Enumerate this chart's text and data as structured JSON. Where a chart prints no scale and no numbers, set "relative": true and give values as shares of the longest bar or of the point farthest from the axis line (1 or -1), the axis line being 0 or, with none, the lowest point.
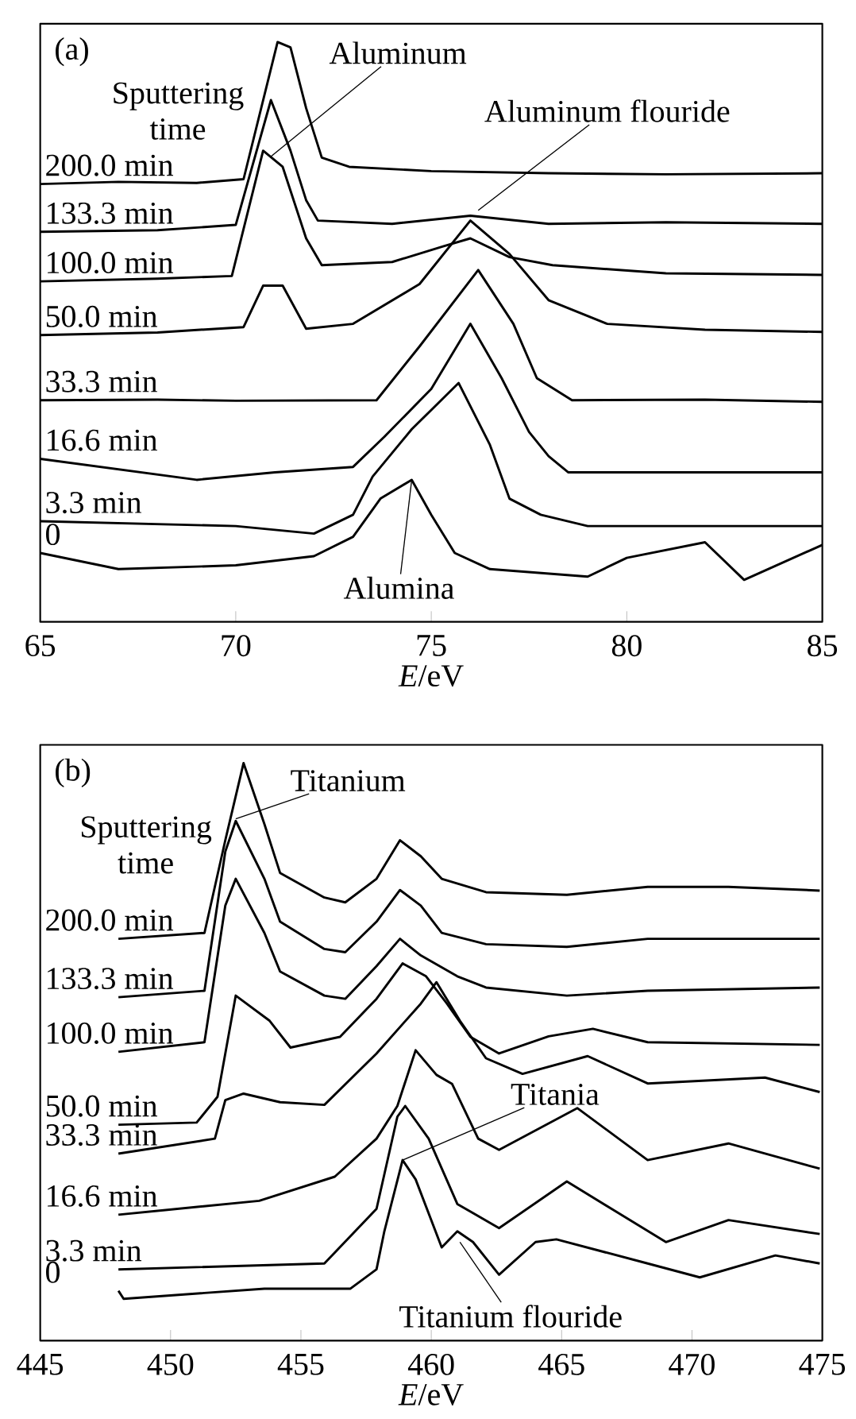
{
  "chart_data": [
    {
      "type": "line",
      "relative": true,
      "title": "(a)",
      "legend_title": "Sputtering time",
      "xlabel": "*E*/eV",
      "xlim": [
        65,
        85
      ],
      "xticks": [
        65,
        70,
        75,
        80,
        85
      ],
      "tick_labels": "x",
      "series": [
        {
          "name": "200.0 min",
          "color": "#000000",
          "x": [
            65,
            67,
            69,
            70.2,
            71.07,
            71.4,
            71.8,
            72.2,
            72.9,
            75,
            78,
            81,
            85
          ],
          "values": [
            0.736,
            0.74,
            0.738,
            0.745,
            1.0,
            0.99,
            0.877,
            0.785,
            0.768,
            0.76,
            0.756,
            0.754,
            0.756
          ]
        },
        {
          "name": "133.3 min",
          "color": "#000000",
          "x": [
            65,
            68,
            70.0,
            70.9,
            71.4,
            71.8,
            72.1,
            74,
            76,
            78,
            81,
            85
          ],
          "values": [
            0.647,
            0.65,
            0.66,
            0.892,
            0.798,
            0.706,
            0.668,
            0.662,
            0.677,
            0.662,
            0.665,
            0.662
          ]
        },
        {
          "name": "100.0 min",
          "color": "#000000",
          "x": [
            65,
            68,
            69.9,
            70.7,
            71.2,
            71.8,
            72.2,
            74,
            75.3,
            76,
            77,
            78.1,
            81,
            85
          ],
          "values": [
            0.555,
            0.56,
            0.565,
            0.798,
            0.768,
            0.635,
            0.585,
            0.591,
            0.62,
            0.635,
            0.6,
            0.585,
            0.57,
            0.567
          ]
        },
        {
          "name": "50.0 min",
          "color": "#000000",
          "x": [
            65,
            68,
            70.2,
            70.7,
            71.2,
            71.8,
            73,
            74.7,
            76.0,
            77,
            78,
            79.5,
            82,
            85
          ],
          "values": [
            0.455,
            0.46,
            0.47,
            0.547,
            0.547,
            0.467,
            0.476,
            0.55,
            0.668,
            0.606,
            0.52,
            0.476,
            0.465,
            0.461
          ]
        },
        {
          "name": "33.3 min",
          "color": "#000000",
          "x": [
            65,
            68,
            70,
            73.6,
            74.7,
            76.2,
            77.1,
            77.7,
            78.6,
            82,
            85
          ],
          "values": [
            0.334,
            0.335,
            0.333,
            0.334,
            0.434,
            0.576,
            0.476,
            0.375,
            0.334,
            0.335,
            0.331
          ]
        },
        {
          "name": "16.6 min",
          "color": "#000000",
          "x": [
            65,
            69,
            71,
            73,
            73.8,
            75,
            76,
            76.8,
            77.5,
            78,
            78.5,
            82,
            85
          ],
          "values": [
            0.225,
            0.186,
            0.2,
            0.21,
            0.266,
            0.355,
            0.476,
            0.375,
            0.275,
            0.23,
            0.2,
            0.2,
            0.2
          ]
        },
        {
          "name": "3.3 min",
          "color": "#000000",
          "x": [
            65,
            70,
            72,
            73,
            73.5,
            74.5,
            75.7,
            76.5,
            77,
            77.8,
            79,
            85
          ],
          "values": [
            0.109,
            0.1,
            0.086,
            0.121,
            0.192,
            0.28,
            0.366,
            0.251,
            0.151,
            0.121,
            0.1,
            0.1
          ]
        },
        {
          "name": "0",
          "color": "#000000",
          "x": [
            65,
            67,
            70,
            72,
            73,
            73.7,
            74.5,
            75,
            75.6,
            76.5,
            79,
            80,
            82,
            83,
            85
          ],
          "values": [
            0.05,
            0.02,
            0.027,
            0.044,
            0.08,
            0.151,
            0.186,
            0.121,
            0.05,
            0.02,
            0.006,
            0.041,
            0.07,
            0.0,
            0.065
          ]
        }
      ],
      "annotations": [
        {
          "text": "Aluminum",
          "x": 70.9,
          "y": 0.787
        },
        {
          "text": "Aluminum flouride",
          "x": 76.2,
          "y": 0.687
        },
        {
          "text": "Alumina",
          "x": 74.5,
          "y": 0.186
        }
      ]
    },
    {
      "type": "line",
      "relative": true,
      "title": "(b)",
      "legend_title": "Sputtering time",
      "xlabel": "*E*/eV",
      "xlim": [
        445,
        475
      ],
      "xticks": [
        445,
        450,
        455,
        460,
        465,
        470,
        475
      ],
      "tick_labels": "x",
      "series": [
        {
          "name": "200.0 min",
          "color": "#000000",
          "x": [
            448.0,
            451.3,
            452.1,
            452.8,
            453.6,
            454.2,
            455.9,
            456.7,
            457.9,
            458.8,
            459.6,
            460.4,
            462.1,
            465.2,
            468.3,
            471.4,
            474.9
          ],
          "values": [
            0.672,
            0.683,
            0.856,
            1.0,
            0.886,
            0.795,
            0.749,
            0.74,
            0.784,
            0.856,
            0.826,
            0.784,
            0.759,
            0.754,
            0.769,
            0.769,
            0.762
          ]
        },
        {
          "name": "133.3 min",
          "color": "#000000",
          "x": [
            448.0,
            451.3,
            452.1,
            452.5,
            453.6,
            454.2,
            455.9,
            456.7,
            457.9,
            458.8,
            459.6,
            460.4,
            462.1,
            465.2,
            468.3,
            474.9
          ],
          "values": [
            0.563,
            0.575,
            0.835,
            0.892,
            0.784,
            0.704,
            0.653,
            0.647,
            0.704,
            0.763,
            0.734,
            0.683,
            0.662,
            0.657,
            0.672,
            0.672
          ]
        },
        {
          "name": "100.0 min",
          "color": "#000000",
          "x": [
            448.0,
            451.3,
            452.1,
            452.5,
            453.6,
            454.2,
            455.9,
            456.7,
            457.9,
            458.8,
            459.6,
            461.0,
            462.1,
            465.2,
            468.3,
            474.9
          ],
          "values": [
            0.461,
            0.479,
            0.734,
            0.784,
            0.683,
            0.611,
            0.566,
            0.56,
            0.621,
            0.672,
            0.641,
            0.602,
            0.581,
            0.566,
            0.575,
            0.581
          ]
        },
        {
          "name": "50.0 min",
          "color": "#000000",
          "x": [
            448.0,
            451.0,
            451.8,
            452.5,
            453.8,
            454.6,
            456.5,
            457.9,
            458.9,
            459.8,
            460.6,
            461.5,
            462.6,
            464.5,
            466.2,
            468.3,
            474.9
          ],
          "values": [
            0.325,
            0.329,
            0.377,
            0.566,
            0.519,
            0.469,
            0.489,
            0.56,
            0.626,
            0.602,
            0.551,
            0.489,
            0.458,
            0.49,
            0.504,
            0.479,
            0.474
          ]
        },
        {
          "name": "33.3 min",
          "color": "#000000",
          "x": [
            448.0,
            451.7,
            452.1,
            452.8,
            454.2,
            455.9,
            457.9,
            459.6,
            460.2,
            461.1,
            462.1,
            463.5,
            466.0,
            468.3,
            472.8,
            474.9
          ],
          "values": [
            0.271,
            0.299,
            0.371,
            0.383,
            0.367,
            0.362,
            0.458,
            0.551,
            0.591,
            0.519,
            0.449,
            0.42,
            0.453,
            0.402,
            0.413,
            0.386
          ]
        },
        {
          "name": "16.6 min",
          "color": "#000000",
          "x": [
            448.0,
            453.4,
            456.3,
            457.9,
            458.7,
            459.4,
            460.2,
            460.8,
            461.8,
            462.6,
            465.6,
            468.3,
            471.4,
            474.9
          ],
          "values": [
            0.157,
            0.183,
            0.228,
            0.299,
            0.36,
            0.464,
            0.418,
            0.401,
            0.299,
            0.278,
            0.356,
            0.259,
            0.29,
            0.243
          ]
        },
        {
          "name": "3.3 min",
          "color": "#000000",
          "x": [
            448.0,
            455.9,
            457.9,
            458.7,
            459.0,
            459.9,
            461.0,
            462.6,
            465.2,
            469.0,
            471.4,
            474.9
          ],
          "values": [
            0.055,
            0.066,
            0.168,
            0.34,
            0.36,
            0.299,
            0.177,
            0.132,
            0.219,
            0.106,
            0.147,
            0.121
          ]
        },
        {
          "name": "0",
          "color": "#000000",
          "x": [
            448.0,
            448.2,
            453.6,
            456.9,
            457.9,
            458.2,
            458.9,
            459.4,
            460.4,
            461.0,
            461.6,
            462.6,
            464.0,
            464.8,
            468.3,
            470.3,
            473.2,
            474.9
          ],
          "values": [
            0.015,
            0.0,
            0.019,
            0.019,
            0.055,
            0.126,
            0.259,
            0.223,
            0.096,
            0.126,
            0.106,
            0.045,
            0.106,
            0.111,
            0.066,
            0.04,
            0.081,
            0.066
          ]
        }
      ],
      "annotations": [
        {
          "text": "Titanium",
          "x": 452.5,
          "y": 0.896
        },
        {
          "text": "Titania",
          "x": 458.9,
          "y": 0.259
        },
        {
          "text": "Titanium flouride",
          "x": 461.1,
          "y": 0.106
        }
      ]
    }
  ]
}
